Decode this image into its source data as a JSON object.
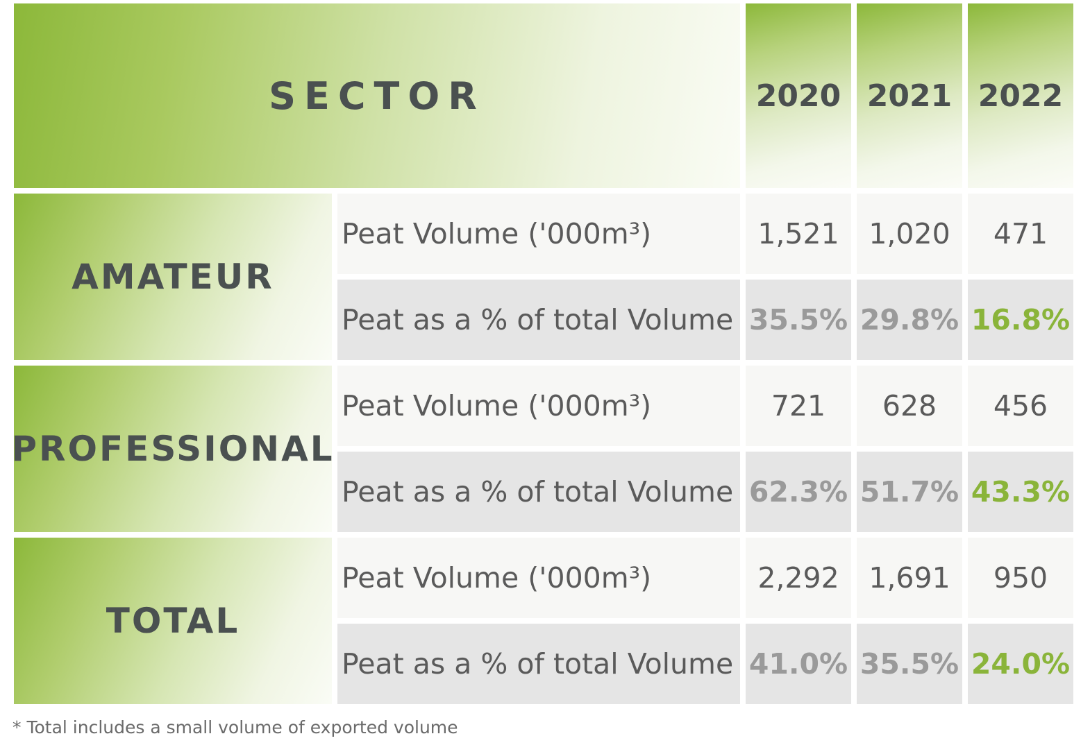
{
  "header": {
    "sector_label": "SECTOR",
    "years": [
      "2020",
      "2021",
      "2022"
    ]
  },
  "metric_labels": {
    "volume": "Peat Volume ('000m³)",
    "percent": "Peat as a % of total Volume"
  },
  "sectors": [
    {
      "name": "AMATEUR",
      "volume": [
        "1,521",
        "1,020",
        "471"
      ],
      "percent": [
        "35.5%",
        "29.8%",
        "16.8%"
      ]
    },
    {
      "name": "PROFESSIONAL",
      "volume": [
        "721",
        "628",
        "456"
      ],
      "percent": [
        "62.3%",
        "51.7%",
        "43.3%"
      ]
    },
    {
      "name": "TOTAL",
      "volume": [
        "2,292",
        "1,691",
        "950"
      ],
      "percent": [
        "41.0%",
        "35.5%",
        "24.0%"
      ]
    }
  ],
  "footnote": "* Total includes a small volume of exported volume",
  "colors": {
    "accent_green": "#8ab43a",
    "percent_grey": "#9a9a9a",
    "text_dark": "#4a5050"
  }
}
